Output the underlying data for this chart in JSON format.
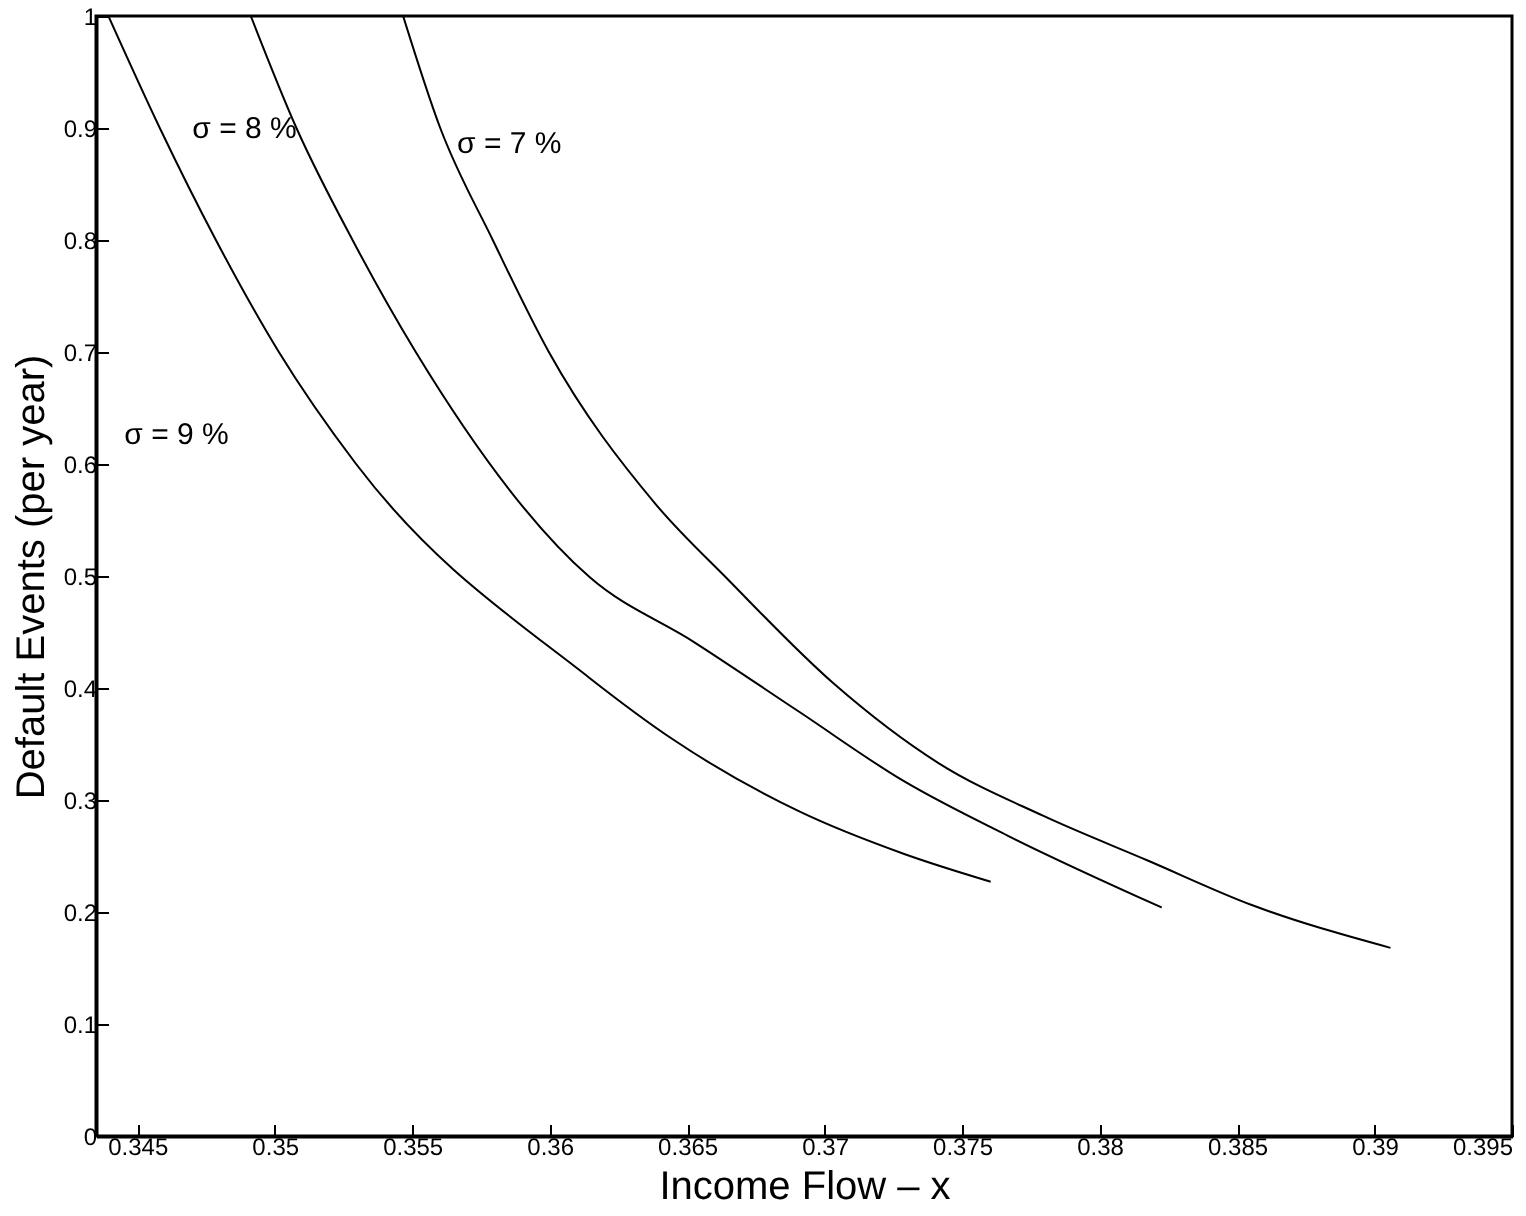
{
  "chart_data": {
    "type": "line",
    "xlabel": "Income Flow – x",
    "ylabel": "Default Events (per year)",
    "xlim": [
      0.3435,
      0.395
    ],
    "ylim": [
      0,
      1
    ],
    "xticks": [
      0.345,
      0.35,
      0.355,
      0.36,
      0.365,
      0.37,
      0.375,
      0.38,
      0.385,
      0.39,
      0.395
    ],
    "yticks": [
      0,
      0.1,
      0.2,
      0.3,
      0.4,
      0.5,
      0.6,
      0.7,
      0.8,
      0.9,
      1
    ],
    "grid": false,
    "marker": "none",
    "line_style": "solid",
    "series": [
      {
        "color": "#000000",
        "x": [
          0.34395,
          0.34582,
          0.34786,
          0.35015,
          0.35296,
          0.36145,
          0.36449,
          0.36906,
          0.37287,
          0.37604
        ],
        "values": [
          1,
          0.9,
          0.8,
          0.7,
          0.6,
          0.409,
          0.354,
          0.29,
          0.252,
          0.227
        ]
      },
      {
        "color": "#000000",
        "x": [
          0.34913,
          0.35079,
          0.35283,
          0.35513,
          0.36145,
          0.36525,
          0.36906,
          0.37287,
          0.37667,
          0.38226
        ],
        "values": [
          1,
          0.9,
          0.8,
          0.7,
          0.499,
          0.441,
          0.379,
          0.317,
          0.268,
          0.204
        ]
      },
      {
        "color": "#000000",
        "x": [
          0.35467,
          0.35602,
          0.35793,
          0.35997,
          0.36386,
          0.36652,
          0.37033,
          0.37414,
          0.37794,
          0.38175,
          0.38556,
          0.39058
        ],
        "values": [
          1,
          0.9,
          0.8,
          0.7,
          0.564,
          0.496,
          0.404,
          0.333,
          0.286,
          0.246,
          0.206,
          0.168
        ]
      }
    ],
    "annotations": [
      "σ = 9 %",
      "σ = 8 %",
      "σ = 7 %"
    ]
  }
}
